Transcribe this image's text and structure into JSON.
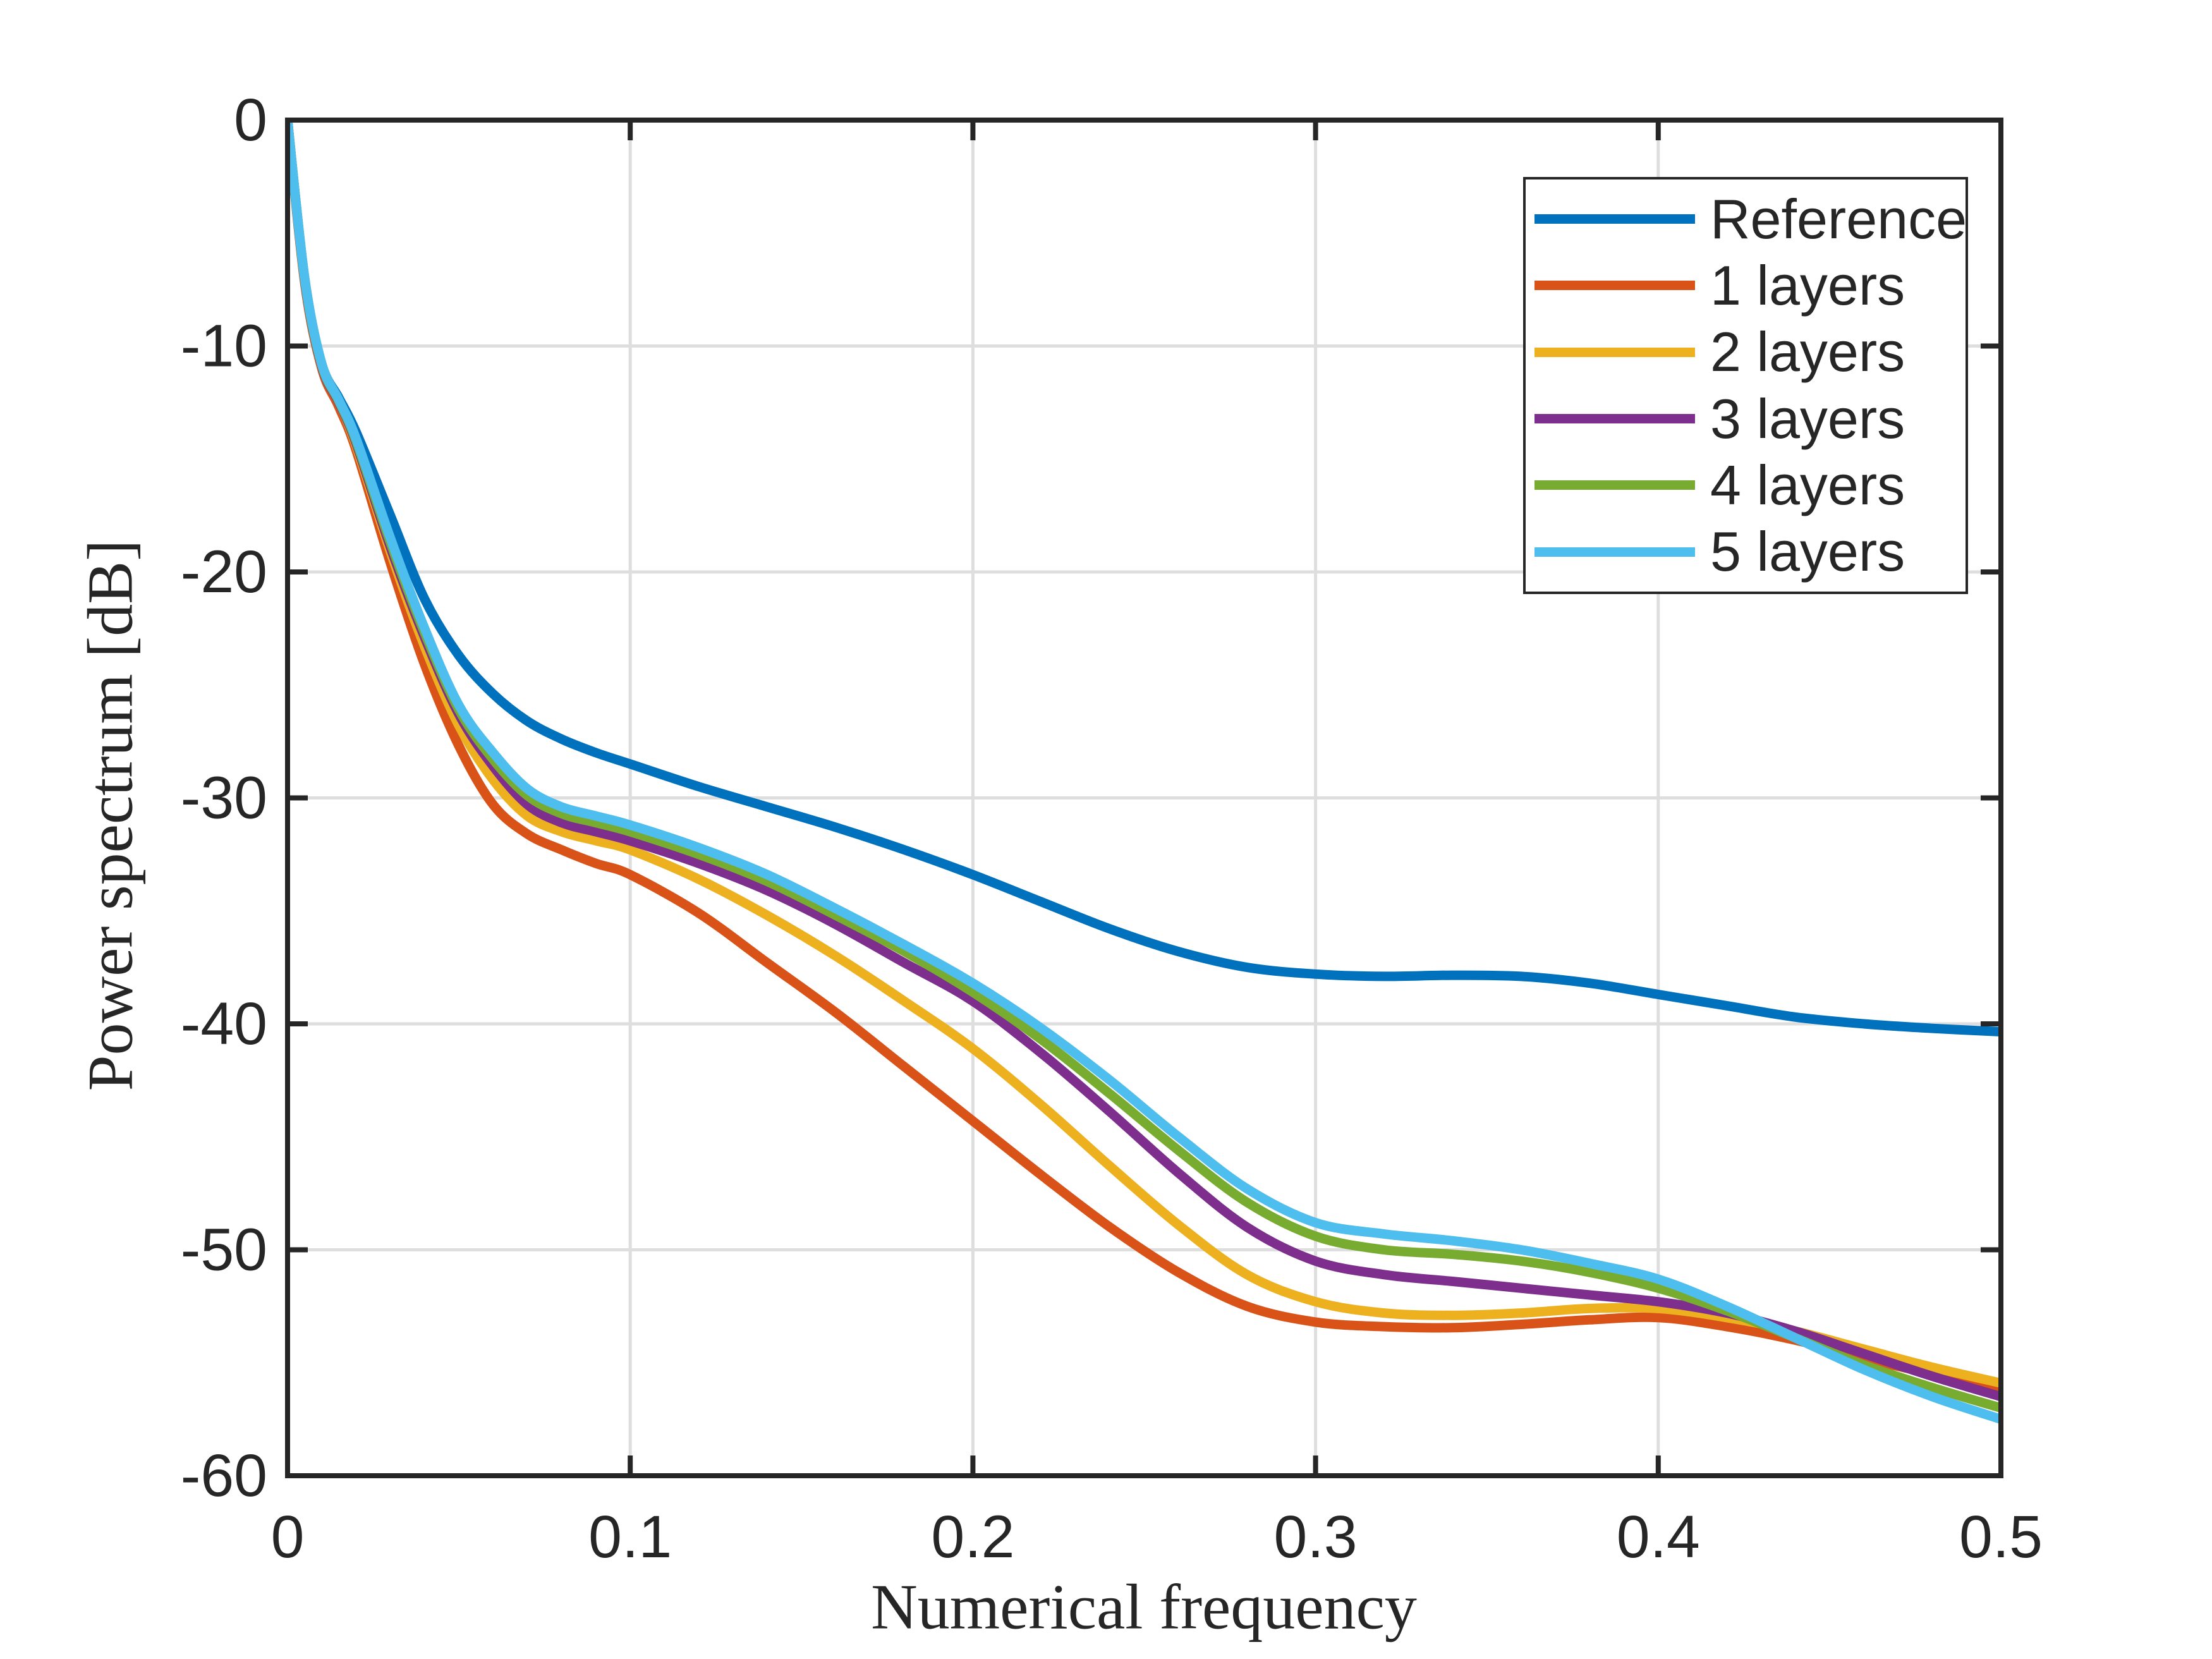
{
  "figure": {
    "background_color": "#ffffff",
    "axes_color": "#262626",
    "grid_color": "#dedede",
    "tick_label_color": "#262626"
  },
  "chart_data": {
    "type": "line",
    "title": "",
    "xlabel": "Numerical frequency",
    "ylabel": "Power spectrum [dB]",
    "xlim": [
      0,
      0.5
    ],
    "ylim": [
      -60,
      0
    ],
    "grid": true,
    "legend_position": "upper-right",
    "x_ticks": [
      0,
      0.1,
      0.2,
      0.3,
      0.4,
      0.5
    ],
    "x_tick_labels": [
      "0",
      "0.1",
      "0.2",
      "0.3",
      "0.4",
      "0.5"
    ],
    "y_ticks": [
      0,
      -10,
      -20,
      -30,
      -40,
      -50,
      -60
    ],
    "y_tick_labels": [
      "0",
      "-10",
      "-20",
      "-30",
      "-40",
      "-50",
      "-60"
    ],
    "x": [
      0,
      0.005,
      0.01,
      0.015,
      0.02,
      0.03,
      0.04,
      0.05,
      0.06,
      0.07,
      0.08,
      0.09,
      0.1,
      0.12,
      0.14,
      0.16,
      0.18,
      0.2,
      0.22,
      0.24,
      0.26,
      0.28,
      0.3,
      0.32,
      0.34,
      0.36,
      0.38,
      0.4,
      0.42,
      0.44,
      0.46,
      0.48,
      0.5
    ],
    "series": [
      {
        "name": "Reference",
        "color": "#0072BD",
        "values": [
          0,
          -7.0,
          -10.8,
          -12.3,
          -13.8,
          -17.5,
          -21.2,
          -23.7,
          -25.4,
          -26.6,
          -27.4,
          -28.0,
          -28.5,
          -29.5,
          -30.4,
          -31.3,
          -32.3,
          -33.4,
          -34.6,
          -35.8,
          -36.8,
          -37.5,
          -37.8,
          -37.9,
          -37.85,
          -37.9,
          -38.2,
          -38.7,
          -39.2,
          -39.7,
          -40.0,
          -40.2,
          -40.35
        ]
      },
      {
        "name": "1 layers",
        "color": "#D95319",
        "values": [
          0,
          -7.2,
          -11.0,
          -12.7,
          -14.6,
          -19.6,
          -24.1,
          -27.7,
          -30.3,
          -31.6,
          -32.3,
          -32.9,
          -33.4,
          -35.1,
          -37.3,
          -39.5,
          -41.9,
          -44.3,
          -46.7,
          -49.0,
          -51.0,
          -52.5,
          -53.2,
          -53.4,
          -53.45,
          -53.3,
          -53.1,
          -53.0,
          -53.4,
          -54.0,
          -54.8,
          -55.5,
          -56.2
        ]
      },
      {
        "name": "2 layers",
        "color": "#EDB120",
        "values": [
          0,
          -7.1,
          -10.9,
          -12.5,
          -14.4,
          -19.1,
          -23.3,
          -26.8,
          -29.2,
          -30.8,
          -31.5,
          -31.9,
          -32.3,
          -33.6,
          -35.2,
          -37.0,
          -39.0,
          -41.1,
          -43.6,
          -46.3,
          -48.9,
          -51.1,
          -52.3,
          -52.8,
          -52.9,
          -52.8,
          -52.6,
          -52.6,
          -53.0,
          -53.6,
          -54.4,
          -55.2,
          -55.9
        ]
      },
      {
        "name": "3 layers",
        "color": "#7E2F8E",
        "values": [
          0,
          -7.1,
          -10.9,
          -12.5,
          -14.3,
          -18.9,
          -22.9,
          -26.3,
          -28.6,
          -30.3,
          -31.1,
          -31.5,
          -31.9,
          -32.9,
          -34.1,
          -35.6,
          -37.3,
          -39.0,
          -41.3,
          -43.9,
          -46.6,
          -49.0,
          -50.5,
          -51.1,
          -51.4,
          -51.7,
          -52.0,
          -52.3,
          -52.8,
          -53.6,
          -54.6,
          -55.6,
          -56.5
        ]
      },
      {
        "name": "4 layers",
        "color": "#77AC30",
        "values": [
          0,
          -7.05,
          -10.85,
          -12.45,
          -14.2,
          -18.7,
          -22.7,
          -26.1,
          -28.3,
          -29.9,
          -30.7,
          -31.1,
          -31.5,
          -32.5,
          -33.7,
          -35.2,
          -36.8,
          -38.6,
          -40.7,
          -43.1,
          -45.6,
          -47.9,
          -49.4,
          -50.0,
          -50.2,
          -50.5,
          -51.0,
          -51.7,
          -52.7,
          -53.9,
          -55.1,
          -56.1,
          -57.0
        ]
      },
      {
        "name": "5 layers",
        "color": "#4DBEEE",
        "values": [
          0,
          -7.0,
          -10.8,
          -12.4,
          -14.1,
          -18.5,
          -22.5,
          -25.9,
          -28.0,
          -29.6,
          -30.4,
          -30.8,
          -31.2,
          -32.2,
          -33.4,
          -34.9,
          -36.5,
          -38.2,
          -40.2,
          -42.5,
          -45.0,
          -47.3,
          -48.8,
          -49.3,
          -49.6,
          -50.0,
          -50.6,
          -51.3,
          -52.5,
          -53.9,
          -55.3,
          -56.5,
          -57.5
        ]
      }
    ]
  }
}
